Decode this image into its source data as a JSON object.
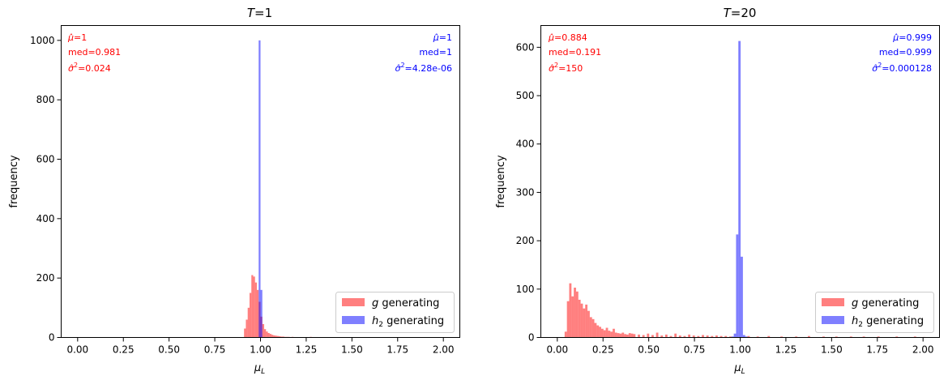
{
  "colors": {
    "red": "#ff0000",
    "blue": "#0000ff",
    "axis": "#000000"
  },
  "legend_entries": [
    {
      "prefix": "",
      "italic": "g",
      "sub": "",
      "suffix": " generating",
      "color": "#ff0000"
    },
    {
      "prefix": "",
      "italic": "h",
      "sub": "2",
      "suffix": " generating",
      "color": "#0000ff"
    }
  ],
  "chart_data": [
    {
      "type": "bar",
      "title_symbol": "T",
      "title_value": "=1",
      "xlabel": "μ",
      "xlabel_sub": "L",
      "ylabel": "frequency",
      "xlim": [
        -0.09,
        2.09
      ],
      "ylim": [
        0,
        1050
      ],
      "xticks": [
        0.0,
        0.25,
        0.5,
        0.75,
        1.0,
        1.25,
        1.5,
        1.75,
        2.0
      ],
      "xtick_labels": [
        "0.00",
        "0.25",
        "0.50",
        "0.75",
        "1.00",
        "1.25",
        "1.50",
        "1.75",
        "2.00"
      ],
      "yticks": [
        0,
        200,
        400,
        600,
        800,
        1000
      ],
      "legend_position": "lower right",
      "stats": {
        "g": [
          "=1",
          "med=0.981",
          "=0.024"
        ],
        "h2": [
          "=1",
          "med=1",
          "=4.28e-06"
        ]
      },
      "series": [
        {
          "name": "g generating",
          "color": "#ff0000",
          "bin_width": 0.01,
          "bins_x": [
            0.91,
            0.92,
            0.93,
            0.94,
            0.95,
            0.96,
            0.97,
            0.98,
            0.99,
            1.0,
            1.01,
            1.02,
            1.03,
            1.04,
            1.05,
            1.06,
            1.07,
            1.08,
            1.09,
            1.1,
            1.11,
            1.12,
            1.13,
            1.14,
            1.15,
            1.17,
            1.2,
            1.23,
            1.27,
            1.31,
            1.36,
            1.42,
            1.48,
            1.55
          ],
          "values": [
            30,
            60,
            100,
            150,
            210,
            205,
            185,
            160,
            120,
            70,
            45,
            28,
            20,
            15,
            12,
            9,
            7,
            6,
            5,
            4,
            3,
            3,
            2,
            2,
            2,
            2,
            1,
            1,
            2,
            1,
            1,
            1,
            1,
            1
          ]
        },
        {
          "name": "h2 generating",
          "color": "#0000ff",
          "bin_width": 0.01,
          "bins_x": [
            0.99,
            1.0
          ],
          "values": [
            1000,
            160
          ]
        }
      ]
    },
    {
      "type": "bar",
      "title_symbol": "T",
      "title_value": "=20",
      "xlabel": "μ",
      "xlabel_sub": "L",
      "ylabel": "frequency",
      "xlim": [
        -0.09,
        2.09
      ],
      "ylim": [
        0,
        645
      ],
      "xticks": [
        0.0,
        0.25,
        0.5,
        0.75,
        1.0,
        1.25,
        1.5,
        1.75,
        2.0
      ],
      "xtick_labels": [
        "0.00",
        "0.25",
        "0.50",
        "0.75",
        "1.00",
        "1.25",
        "1.50",
        "1.75",
        "2.00"
      ],
      "yticks": [
        0,
        100,
        200,
        300,
        400,
        500,
        600
      ],
      "legend_position": "lower right",
      "stats": {
        "g": [
          "=0.884",
          "med=0.191",
          "=150"
        ],
        "h2": [
          "=0.999",
          "med=0.999",
          "=0.000128"
        ]
      },
      "series": [
        {
          "name": "g generating",
          "color": "#ff0000",
          "bin_width": 0.0125,
          "bins_x": [
            0.04,
            0.0525,
            0.065,
            0.0775,
            0.09,
            0.1025,
            0.115,
            0.1275,
            0.14,
            0.1525,
            0.165,
            0.1775,
            0.19,
            0.2025,
            0.215,
            0.2275,
            0.24,
            0.2525,
            0.265,
            0.2775,
            0.29,
            0.3025,
            0.315,
            0.3275,
            0.34,
            0.3525,
            0.365,
            0.3775,
            0.39,
            0.4025,
            0.415,
            0.44,
            0.465,
            0.49,
            0.515,
            0.54,
            0.565,
            0.59,
            0.615,
            0.64,
            0.665,
            0.69,
            0.715,
            0.74,
            0.765,
            0.79,
            0.815,
            0.84,
            0.865,
            0.89,
            0.915,
            0.94,
            1.04,
            1.09,
            1.15,
            1.22,
            1.3,
            1.37,
            1.45,
            1.52,
            1.6,
            1.67,
            1.75,
            1.85,
            1.95,
            2.0
          ],
          "values": [
            12,
            75,
            112,
            85,
            103,
            95,
            78,
            70,
            60,
            68,
            55,
            42,
            38,
            30,
            25,
            22,
            18,
            15,
            20,
            14,
            12,
            18,
            10,
            9,
            8,
            10,
            7,
            6,
            9,
            8,
            7,
            6,
            5,
            8,
            5,
            10,
            4,
            6,
            3,
            8,
            4,
            3,
            6,
            4,
            3,
            5,
            4,
            3,
            4,
            3,
            3,
            2,
            3,
            2,
            3,
            2,
            2,
            3,
            2,
            2,
            2,
            2,
            2,
            2,
            2,
            1
          ]
        },
        {
          "name": "h2 generating",
          "color": "#0000ff",
          "bin_width": 0.0125,
          "bins_x": [
            0.9525,
            0.965,
            0.9775,
            0.99,
            1.0025,
            1.015,
            1.0275
          ],
          "values": [
            2,
            8,
            213,
            613,
            167,
            5,
            2
          ]
        }
      ]
    }
  ]
}
